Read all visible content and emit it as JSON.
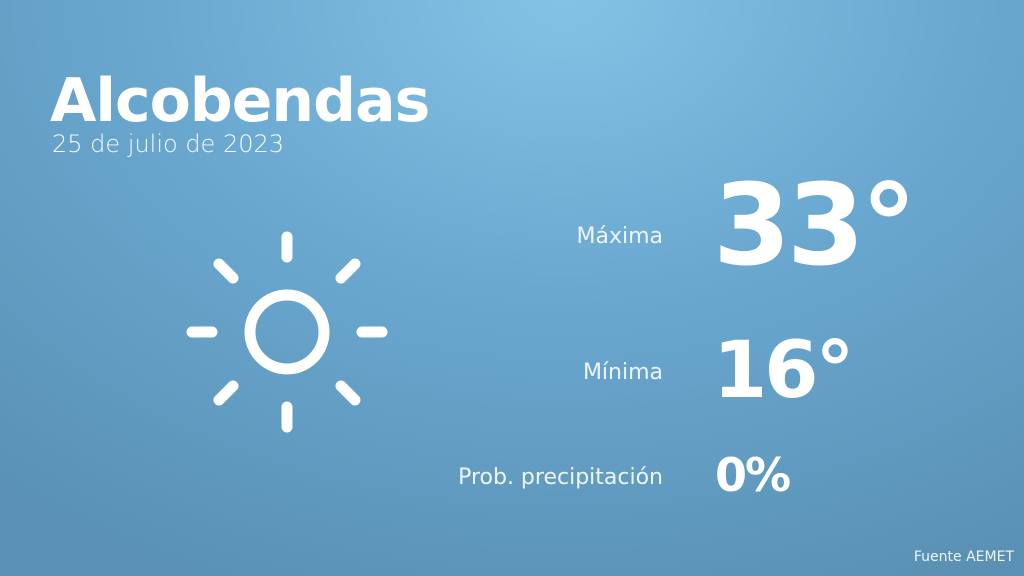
{
  "city": "Alcobendas",
  "date": "25 de julio de 2023",
  "weather_icon": "sun-icon",
  "max": {
    "label": "Máxima",
    "value": "33°"
  },
  "min": {
    "label": "Mínima",
    "value": "16°"
  },
  "precipitation": {
    "label": "Prob. precipitación",
    "value": "0%"
  },
  "source": "Fuente AEMET",
  "colors": {
    "background_top": "#84c2e5",
    "background_bottom": "#5990b3",
    "text": "#ffffff"
  }
}
